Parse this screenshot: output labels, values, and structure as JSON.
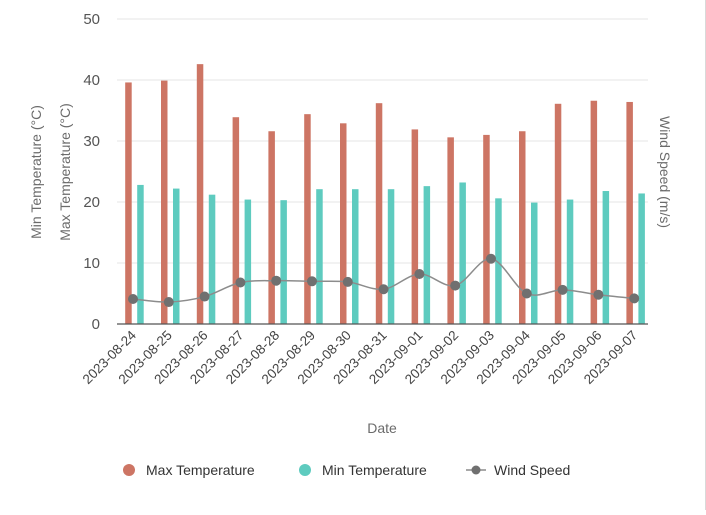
{
  "chart_data": {
    "type": "bar",
    "title": "",
    "xlabel": "Date",
    "ylabels": {
      "max_temp": "Max Temperature (°C)",
      "min_temp": "Min Temperature (°C)",
      "wind": "Wind Speed (m/s)"
    },
    "ylim": [
      0,
      50
    ],
    "yticks": [
      0,
      10,
      20,
      30,
      40,
      50
    ],
    "grid": true,
    "legend_position": "bottom",
    "categories": [
      "2023-08-24",
      "2023-08-25",
      "2023-08-26",
      "2023-08-27",
      "2023-08-28",
      "2023-08-29",
      "2023-08-30",
      "2023-08-31",
      "2023-09-01",
      "2023-09-02",
      "2023-09-03",
      "2023-09-04",
      "2023-09-05",
      "2023-09-06",
      "2023-09-07"
    ],
    "series": [
      {
        "name": "Max Temperature",
        "type": "bar",
        "color": "#cd7564",
        "values": [
          39.6,
          39.9,
          42.6,
          33.9,
          31.6,
          34.4,
          32.9,
          36.2,
          31.9,
          30.6,
          31.0,
          31.6,
          36.1,
          36.6,
          36.4
        ]
      },
      {
        "name": "Min Temperature",
        "type": "bar",
        "color": "#5ecbbf",
        "values": [
          22.8,
          22.2,
          21.2,
          20.4,
          20.3,
          22.1,
          22.1,
          22.1,
          22.6,
          23.2,
          20.6,
          19.9,
          20.4,
          21.8,
          21.4
        ]
      },
      {
        "name": "Wind Speed",
        "type": "line",
        "color": "#8c8c8c",
        "marker_color": "#707070",
        "values": [
          4.1,
          3.6,
          4.5,
          6.8,
          7.1,
          7.0,
          6.9,
          5.7,
          8.2,
          6.3,
          10.7,
          5.0,
          5.6,
          4.8,
          4.2
        ]
      }
    ]
  }
}
